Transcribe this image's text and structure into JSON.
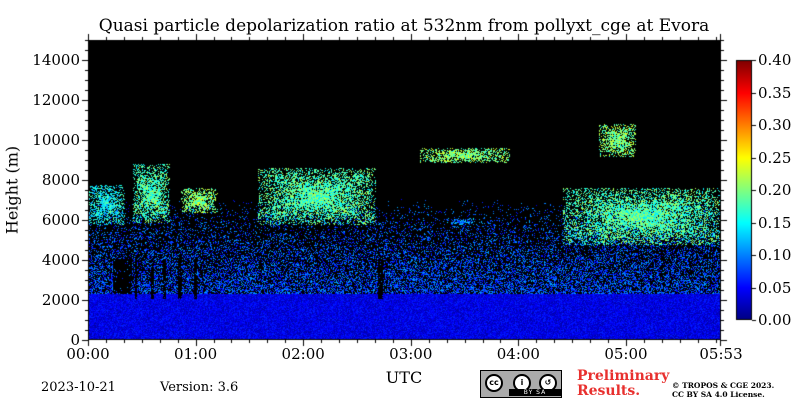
{
  "chart_data": {
    "type": "heatmap",
    "title": "Quasi particle depolarization ratio at 532nm from pollyxt_cge at Evora",
    "xlabel": "UTC",
    "ylabel": "Height (m)",
    "xlim": [
      "00:00",
      "05:53"
    ],
    "ylim": [
      0,
      15000
    ],
    "x_ticks": [
      "00:00",
      "01:00",
      "02:00",
      "03:00",
      "04:00",
      "05:00",
      "05:53"
    ],
    "y_ticks": [
      "0",
      "2000",
      "4000",
      "6000",
      "8000",
      "10000",
      "12000",
      "14000"
    ],
    "colorbar": {
      "range": [
        0.0,
        0.4
      ],
      "ticks": [
        "0.00",
        "0.05",
        "0.10",
        "0.15",
        "0.20",
        "0.25",
        "0.30",
        "0.35",
        "0.40"
      ],
      "colormap": "jet",
      "background": "#000000"
    },
    "features": [
      {
        "label": "boundary layer",
        "start": "00:00",
        "end": "05:53",
        "base_m": 0,
        "top_m": 2300,
        "value": 0.04
      },
      {
        "label": "aerosol layer",
        "start": "00:00",
        "end": "00:20",
        "base_m": 5800,
        "top_m": 7800,
        "value": 0.15
      },
      {
        "label": "aerosol layer",
        "start": "00:25",
        "end": "00:45",
        "base_m": 5900,
        "top_m": 8800,
        "value": 0.18
      },
      {
        "label": "aerosol layer",
        "start": "00:52",
        "end": "01:12",
        "base_m": 6400,
        "top_m": 7600,
        "value": 0.2
      },
      {
        "label": "aerosol layer",
        "start": "01:35",
        "end": "02:40",
        "base_m": 5800,
        "top_m": 8600,
        "value": 0.18
      },
      {
        "label": "aerosol layer",
        "start": "03:05",
        "end": "03:55",
        "base_m": 8900,
        "top_m": 9600,
        "value": 0.2
      },
      {
        "label": "aerosol layer",
        "start": "03:20",
        "end": "03:35",
        "base_m": 5800,
        "top_m": 6100,
        "value": 0.1
      },
      {
        "label": "aerosol layer",
        "start": "04:25",
        "end": "05:53",
        "base_m": 4800,
        "top_m": 7600,
        "value": 0.18
      },
      {
        "label": "aerosol layer",
        "start": "04:45",
        "end": "05:05",
        "base_m": 9200,
        "top_m": 10800,
        "value": 0.2
      }
    ]
  },
  "footer": {
    "date": "2023-10-21",
    "version": "Version: 3.6",
    "preliminary_line1": "Preliminary",
    "preliminary_line2": "Results.",
    "copyright_line1": "© TROPOS & CGE 2023.",
    "copyright_line2": "CC BY SA 4.0 License.",
    "cc_band": "BY  SA",
    "cc_icons": [
      "cc-icon",
      "by-person-icon",
      "sa-icon"
    ]
  }
}
